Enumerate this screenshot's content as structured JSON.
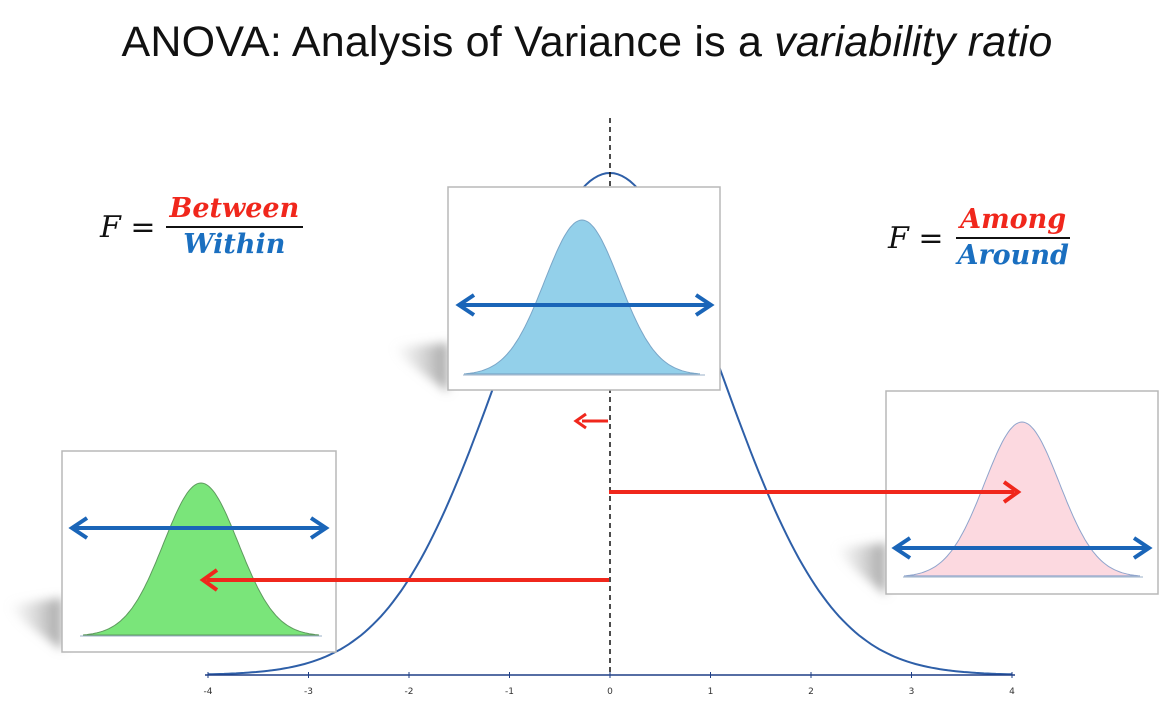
{
  "title": {
    "prefix": "ANOVA: Analysis of Variance is a ",
    "emphasis": "variability ratio"
  },
  "formula_left": {
    "lhs": "F =",
    "numerator": "Between",
    "denominator": "Within"
  },
  "formula_right": {
    "lhs": "F =",
    "numerator": "Among",
    "denominator": "Around"
  },
  "axis_ticks": [
    "-4",
    "-3",
    "-2",
    "-1",
    "0",
    "1",
    "2",
    "3",
    "4"
  ],
  "colors": {
    "curve": "#2e5fa8",
    "arrow_red": "#f0271c",
    "arrow_blue": "#1a65b8",
    "fill_blue": "#93d0ea",
    "fill_green": "#7ae57a",
    "fill_pink": "#fcd9e0"
  }
}
